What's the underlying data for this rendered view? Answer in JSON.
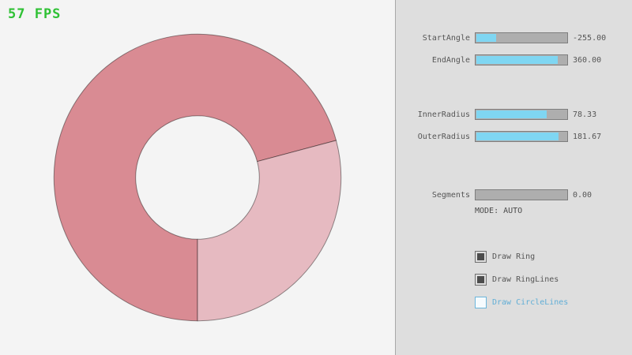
{
  "fps_label": "57 FPS",
  "panel": {
    "sliders": [
      {
        "label": "StartAngle",
        "value": "-255.00",
        "fill_pct": 21.7
      },
      {
        "label": "EndAngle",
        "value": "360.00",
        "fill_pct": 90.0
      },
      {
        "label": "InnerRadius",
        "value": "78.33",
        "fill_pct": 78.3
      },
      {
        "label": "OuterRadius",
        "value": "181.67",
        "fill_pct": 90.8
      },
      {
        "label": "Segments",
        "value": "0.00",
        "fill_pct": 0
      }
    ],
    "mode_label": "MODE: AUTO",
    "checkboxes": [
      {
        "label": "Draw Ring",
        "checked": true
      },
      {
        "label": "Draw RingLines",
        "checked": true
      },
      {
        "label": "Draw CircleLines",
        "checked": false
      }
    ]
  },
  "ring": {
    "start_angle": -255.0,
    "end_angle": 360.0,
    "inner_radius": 78.33,
    "outer_radius": 181.67,
    "segments": 0,
    "mode": "AUTO",
    "color_single_pass": "#e6bac1",
    "color_double_pass": "#d98b93"
  },
  "colors": {
    "fps_green": "#2fc135",
    "slider_fill_cyan": "#7fd6f2",
    "slider_track_gray": "#aeaeae",
    "panel_bg": "#dedede",
    "canvas_bg": "#f4f4f4",
    "focus_blue": "#61aed6",
    "checkbox_check_gray": "#4c4c4c"
  }
}
